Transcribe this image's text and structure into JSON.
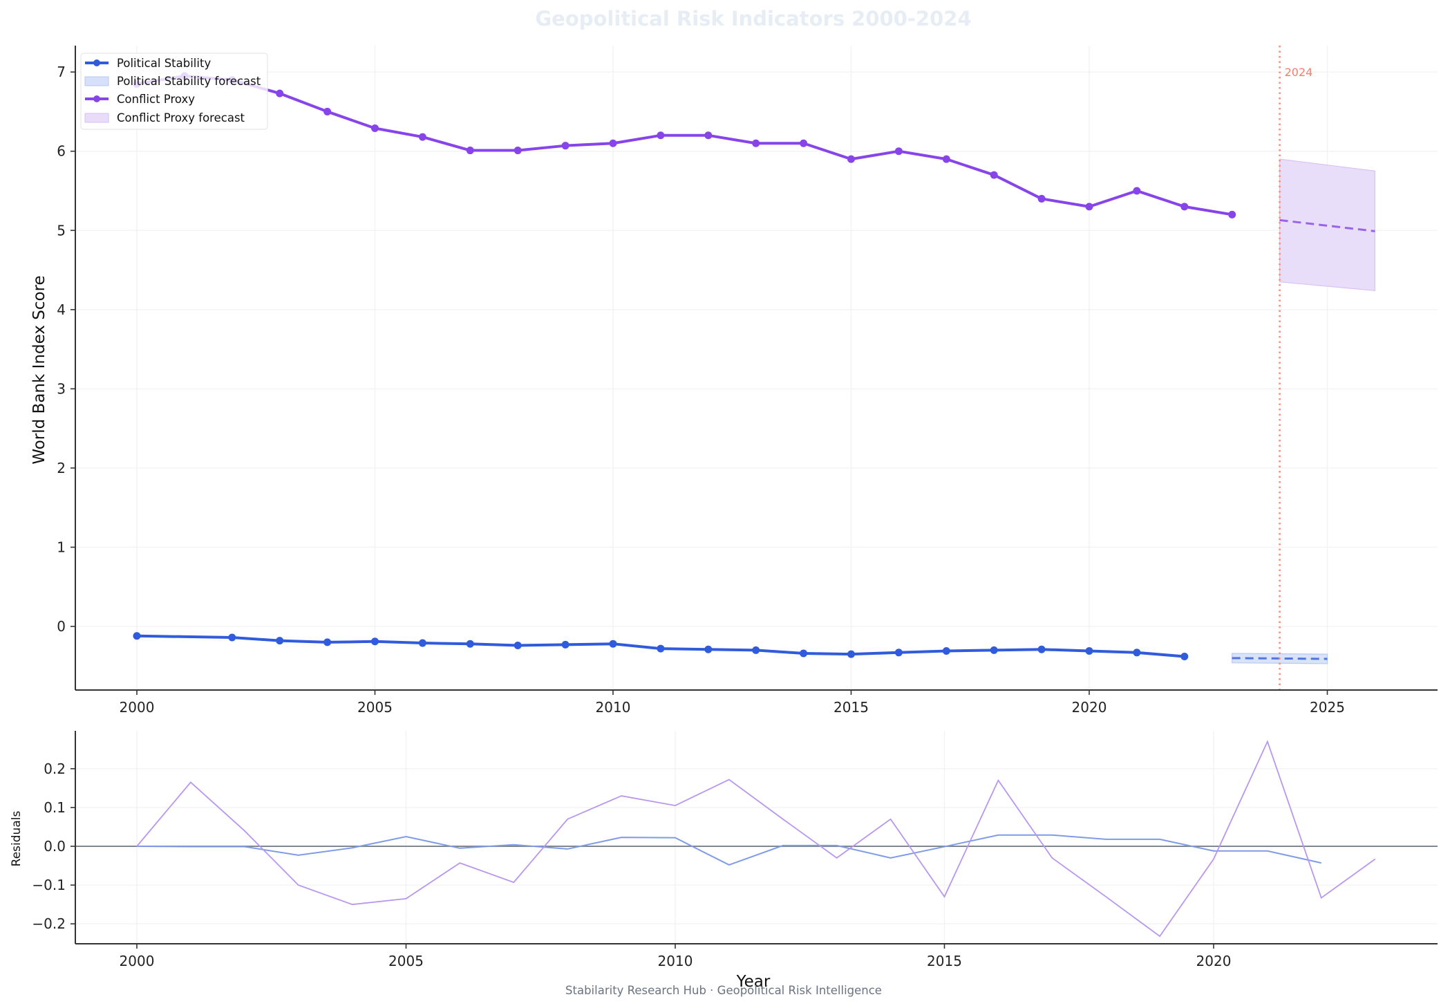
{
  "title": "Geopolitical Risk Indicators 2000-2024",
  "footer": "Stabilarity Research Hub · Geopolitical Risk Intelligence",
  "colors": {
    "political_stability": "#2f5bdc",
    "conflict_proxy": "#8644ea",
    "ps_forecast_fill": "#d6e0f8",
    "cp_forecast_fill": "#e8dcf9",
    "vline": "#f4907e",
    "zero_line": "#7f8790",
    "ps_residual": "#7d9be6",
    "cp_residual": "#b896f0"
  },
  "main_panel": {
    "ylabel": "World Bank Index Score",
    "yticks": [
      "0",
      "1",
      "2",
      "3",
      "4",
      "5",
      "6",
      "7"
    ],
    "xticks": [
      "2000",
      "2005",
      "2010",
      "2015",
      "2020",
      "2025"
    ],
    "vline_label": "2024",
    "legend": [
      {
        "label": "Political Stability",
        "kind": "line"
      },
      {
        "label": "Political Stability forecast",
        "kind": "patch"
      },
      {
        "label": "Conflict Proxy",
        "kind": "line"
      },
      {
        "label": "Conflict Proxy forecast",
        "kind": "patch"
      }
    ]
  },
  "residual_panel": {
    "ylabel": "Residuals",
    "xlabel": "Year",
    "yticks": [
      "0.2",
      "0.1",
      "0.0",
      "−0.1",
      "−0.2"
    ],
    "xticks": [
      "2000",
      "2005",
      "2010",
      "2015",
      "2020"
    ]
  },
  "chart_data": [
    {
      "type": "line",
      "title": "Geopolitical Risk Indicators 2000-2024",
      "xlabel": "",
      "ylabel": "World Bank Index Score",
      "xlim": [
        1998.7,
        2027.4
      ],
      "ylim": [
        -0.82,
        7.32
      ],
      "grid": true,
      "legend_position": "upper left",
      "annotations": [
        {
          "type": "vline",
          "x": 2024,
          "label": "2024",
          "style": "dotted"
        }
      ],
      "series": [
        {
          "name": "Political Stability",
          "x": [
            2000,
            2002,
            2003,
            2004,
            2005,
            2006,
            2007,
            2008,
            2009,
            2010,
            2011,
            2012,
            2013,
            2014,
            2015,
            2016,
            2017,
            2018,
            2019,
            2020,
            2021,
            2022
          ],
          "values": [
            -0.12,
            -0.14,
            -0.18,
            -0.2,
            -0.19,
            -0.21,
            -0.22,
            -0.24,
            -0.23,
            -0.22,
            -0.28,
            -0.29,
            -0.3,
            -0.34,
            -0.35,
            -0.33,
            -0.31,
            -0.3,
            -0.29,
            -0.31,
            -0.33,
            -0.38
          ]
        },
        {
          "name": "Political Stability forecast",
          "x": [
            2023,
            2025
          ],
          "values": [
            -0.4,
            -0.41
          ],
          "lower": [
            -0.46,
            -0.47
          ],
          "upper": [
            -0.34,
            -0.35
          ]
        },
        {
          "name": "Conflict Proxy",
          "x": [
            2000,
            2001,
            2002,
            2003,
            2004,
            2005,
            2006,
            2007,
            2008,
            2009,
            2010,
            2011,
            2012,
            2013,
            2014,
            2015,
            2016,
            2017,
            2018,
            2019,
            2020,
            2021,
            2022,
            2023
          ],
          "values": [
            6.85,
            6.95,
            6.9,
            6.73,
            6.5,
            6.29,
            6.18,
            6.01,
            6.01,
            6.07,
            6.1,
            6.2,
            6.2,
            6.1,
            6.1,
            5.9,
            6.0,
            5.9,
            5.7,
            5.4,
            5.3,
            5.5,
            5.3,
            5.2
          ]
        },
        {
          "name": "Conflict Proxy forecast",
          "x": [
            2024,
            2026
          ],
          "values": [
            5.13,
            4.99
          ],
          "lower": [
            4.35,
            4.24
          ],
          "upper": [
            5.9,
            5.75
          ]
        }
      ]
    },
    {
      "type": "line",
      "title": "",
      "xlabel": "Year",
      "ylabel": "Residuals",
      "xlim": [
        1998.85,
        2024.1
      ],
      "ylim": [
        -0.26,
        0.29
      ],
      "grid": true,
      "series": [
        {
          "name": "Political Stability residuals",
          "x": [
            2000,
            2001,
            2002,
            2003,
            2004,
            2005,
            2006,
            2007,
            2008,
            2009,
            2010,
            2011,
            2012,
            2013,
            2014,
            2015,
            2016,
            2017,
            2018,
            2019,
            2020,
            2021,
            2022
          ],
          "values": [
            0.0,
            -0.001,
            -0.001,
            -0.023,
            -0.004,
            0.025,
            -0.005,
            0.004,
            -0.007,
            0.023,
            0.022,
            -0.048,
            0.002,
            0.002,
            -0.03,
            -0.001,
            0.029,
            0.029,
            0.018,
            0.018,
            -0.012,
            -0.012,
            -0.043
          ]
        },
        {
          "name": "Conflict Proxy residuals",
          "x": [
            2000,
            2001,
            2002,
            2003,
            2004,
            2005,
            2006,
            2007,
            2008,
            2009,
            2010,
            2011,
            2012,
            2013,
            2014,
            2015,
            2016,
            2017,
            2018,
            2019,
            2020,
            2021,
            2022,
            2023
          ],
          "values": [
            0.0,
            0.165,
            0.04,
            -0.1,
            -0.15,
            -0.135,
            -0.043,
            -0.093,
            0.07,
            0.13,
            0.105,
            0.172,
            0.07,
            -0.03,
            0.07,
            -0.13,
            0.17,
            -0.03,
            -0.13,
            -0.232,
            -0.033,
            0.27,
            -0.133,
            -0.033
          ]
        }
      ]
    }
  ]
}
